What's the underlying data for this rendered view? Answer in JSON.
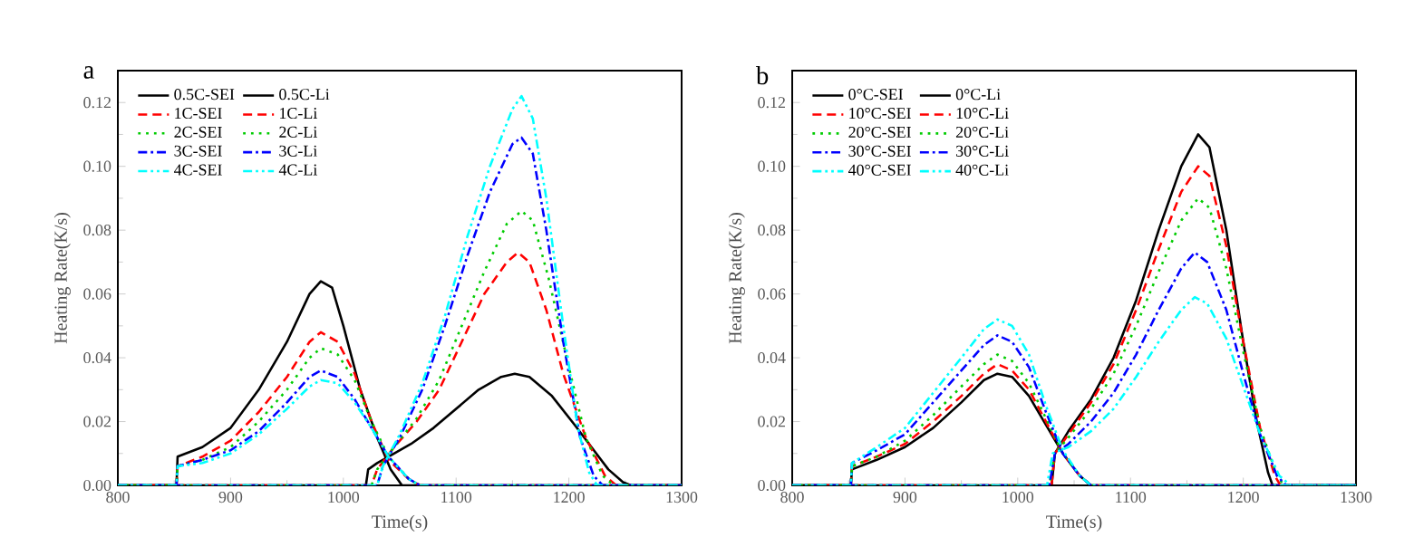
{
  "chart_data": [
    {
      "type": "line",
      "title": "a",
      "xlabel": "Time(s)",
      "ylabel": "Heating Rate(K/s)",
      "xlim": [
        800,
        1300
      ],
      "ylim": [
        0,
        0.13
      ],
      "xticks": [
        800,
        900,
        1000,
        1100,
        1200,
        1300
      ],
      "yticks": [
        {
          "value": 0,
          "label": "0.00"
        },
        {
          "value": 0.02,
          "label": "0.02"
        },
        {
          "value": 0.04,
          "label": "0.04"
        },
        {
          "value": 0.06,
          "label": "0.06"
        },
        {
          "value": 0.08,
          "label": "0.08"
        },
        {
          "value": 0.1,
          "label": "0.10"
        },
        {
          "value": 0.12,
          "label": "0.12"
        }
      ],
      "legend": "top left",
      "series": [
        {
          "name": "0.5C-SEI",
          "color": "#000000",
          "line_style": "solid",
          "x": [
            800,
            852,
            853,
            875,
            900,
            925,
            950,
            970,
            980,
            990,
            1000,
            1015,
            1030,
            1042,
            1052,
            1300
          ],
          "values": [
            0,
            0,
            0.009,
            0.012,
            0.018,
            0.03,
            0.045,
            0.06,
            0.064,
            0.062,
            0.05,
            0.03,
            0.015,
            0.005,
            0,
            0
          ]
        },
        {
          "name": "0.5C-Li",
          "color": "#000000",
          "line_style": "solid",
          "x": [
            800,
            1020,
            1022,
            1030,
            1040,
            1060,
            1080,
            1100,
            1120,
            1140,
            1152,
            1165,
            1185,
            1205,
            1220,
            1235,
            1248,
            1255,
            1300
          ],
          "values": [
            0,
            0,
            0.005,
            0.007,
            0.009,
            0.013,
            0.018,
            0.024,
            0.03,
            0.034,
            0.035,
            0.034,
            0.028,
            0.019,
            0.012,
            0.005,
            0.001,
            0,
            0
          ]
        },
        {
          "name": "1C-SEI",
          "color": "#ff0000",
          "line_style": "dashed",
          "x": [
            800,
            852,
            853,
            875,
            900,
            925,
            950,
            970,
            980,
            995,
            1010,
            1025,
            1040,
            1058,
            1068,
            1300
          ],
          "values": [
            0,
            0,
            0.006,
            0.009,
            0.014,
            0.023,
            0.034,
            0.045,
            0.048,
            0.045,
            0.035,
            0.02,
            0.008,
            0.002,
            0,
            0
          ]
        },
        {
          "name": "1C-Li",
          "color": "#ff0000",
          "line_style": "dashed",
          "x": [
            800,
            1025,
            1030,
            1045,
            1065,
            1085,
            1105,
            1125,
            1145,
            1155,
            1165,
            1180,
            1195,
            1215,
            1232,
            1242,
            1300
          ],
          "values": [
            0,
            0,
            0.005,
            0.012,
            0.02,
            0.03,
            0.045,
            0.06,
            0.07,
            0.073,
            0.07,
            0.055,
            0.035,
            0.015,
            0.003,
            0,
            0
          ]
        },
        {
          "name": "2C-SEI",
          "color": "#00cc00",
          "line_style": "dotted",
          "x": [
            800,
            852,
            853,
            875,
            900,
            925,
            950,
            970,
            980,
            995,
            1010,
            1025,
            1040,
            1058,
            1068,
            1300
          ],
          "values": [
            0,
            0,
            0.006,
            0.008,
            0.012,
            0.02,
            0.03,
            0.04,
            0.043,
            0.041,
            0.033,
            0.02,
            0.009,
            0.002,
            0,
            0
          ]
        },
        {
          "name": "2C-Li",
          "color": "#00cc00",
          "line_style": "dotted",
          "x": [
            800,
            1025,
            1030,
            1045,
            1065,
            1085,
            1105,
            1125,
            1145,
            1158,
            1168,
            1182,
            1198,
            1215,
            1230,
            1240,
            1300
          ],
          "values": [
            0,
            0,
            0.005,
            0.012,
            0.021,
            0.033,
            0.05,
            0.067,
            0.082,
            0.086,
            0.083,
            0.065,
            0.04,
            0.015,
            0.003,
            0,
            0
          ]
        },
        {
          "name": "3C-SEI",
          "color": "#0000ff",
          "line_style": "dashdot",
          "x": [
            800,
            852,
            853,
            875,
            900,
            925,
            950,
            970,
            980,
            995,
            1010,
            1025,
            1040,
            1058,
            1068,
            1300
          ],
          "values": [
            0,
            0,
            0.006,
            0.008,
            0.011,
            0.017,
            0.026,
            0.034,
            0.036,
            0.034,
            0.027,
            0.018,
            0.009,
            0.002,
            0,
            0
          ]
        },
        {
          "name": "3C-Li",
          "color": "#0000ff",
          "line_style": "dashdot",
          "x": [
            800,
            1030,
            1035,
            1050,
            1070,
            1090,
            1110,
            1130,
            1150,
            1158,
            1168,
            1180,
            1195,
            1210,
            1222,
            1230,
            1300
          ],
          "values": [
            0,
            0,
            0.006,
            0.015,
            0.03,
            0.05,
            0.072,
            0.092,
            0.107,
            0.109,
            0.104,
            0.08,
            0.045,
            0.015,
            0.003,
            0,
            0
          ]
        },
        {
          "name": "4C-SEI",
          "color": "#00ffff",
          "line_style": "dashdotdot",
          "x": [
            800,
            852,
            853,
            875,
            900,
            925,
            950,
            970,
            980,
            995,
            1010,
            1025,
            1040,
            1058,
            1068,
            1300
          ],
          "values": [
            0,
            0,
            0.006,
            0.007,
            0.01,
            0.016,
            0.024,
            0.031,
            0.033,
            0.032,
            0.026,
            0.018,
            0.009,
            0.002,
            0,
            0
          ]
        },
        {
          "name": "4C-Li",
          "color": "#00ffff",
          "line_style": "dashdotdot",
          "x": [
            800,
            1030,
            1035,
            1050,
            1070,
            1090,
            1110,
            1130,
            1150,
            1158,
            1168,
            1180,
            1195,
            1208,
            1218,
            1225,
            1300
          ],
          "values": [
            0,
            0,
            0.006,
            0.016,
            0.032,
            0.053,
            0.078,
            0.1,
            0.118,
            0.122,
            0.115,
            0.09,
            0.05,
            0.018,
            0.004,
            0,
            0
          ]
        }
      ]
    },
    {
      "type": "line",
      "title": "b",
      "xlabel": "Time(s)",
      "ylabel": "Heating Rate(K/s)",
      "xlim": [
        800,
        1300
      ],
      "ylim": [
        0,
        0.13
      ],
      "xticks": [
        800,
        900,
        1000,
        1100,
        1200,
        1300
      ],
      "yticks": [
        {
          "value": 0,
          "label": "0.00"
        },
        {
          "value": 0.02,
          "label": "0.02"
        },
        {
          "value": 0.04,
          "label": "0.04"
        },
        {
          "value": 0.06,
          "label": "0.06"
        },
        {
          "value": 0.08,
          "label": "0.08"
        },
        {
          "value": 0.1,
          "label": "0.10"
        },
        {
          "value": 0.12,
          "label": "0.12"
        }
      ],
      "legend": "top left",
      "series": [
        {
          "name": "0°C-SEI",
          "color": "#000000",
          "line_style": "solid",
          "x": [
            800,
            852,
            853,
            875,
            900,
            925,
            950,
            970,
            982,
            995,
            1010,
            1025,
            1040,
            1055,
            1065,
            1300
          ],
          "values": [
            0,
            0,
            0.005,
            0.008,
            0.012,
            0.018,
            0.026,
            0.033,
            0.035,
            0.034,
            0.028,
            0.019,
            0.01,
            0.003,
            0,
            0
          ]
        },
        {
          "name": "0°C-Li",
          "color": "#000000",
          "line_style": "solid",
          "x": [
            800,
            1030,
            1033,
            1045,
            1065,
            1085,
            1105,
            1125,
            1145,
            1160,
            1170,
            1185,
            1200,
            1212,
            1222,
            1226,
            1300
          ],
          "values": [
            0,
            0,
            0.01,
            0.017,
            0.027,
            0.04,
            0.058,
            0.08,
            0.1,
            0.11,
            0.106,
            0.08,
            0.045,
            0.02,
            0.004,
            0,
            0
          ]
        },
        {
          "name": "10°C-SEI",
          "color": "#ff0000",
          "line_style": "dashed",
          "x": [
            800,
            852,
            853,
            875,
            900,
            925,
            950,
            970,
            982,
            995,
            1010,
            1025,
            1040,
            1055,
            1065,
            1300
          ],
          "values": [
            0,
            0,
            0.006,
            0.009,
            0.013,
            0.02,
            0.028,
            0.035,
            0.038,
            0.036,
            0.03,
            0.02,
            0.01,
            0.003,
            0,
            0
          ]
        },
        {
          "name": "10°C-Li",
          "color": "#ff0000",
          "line_style": "dashed",
          "x": [
            800,
            1030,
            1033,
            1045,
            1065,
            1085,
            1105,
            1125,
            1145,
            1160,
            1170,
            1185,
            1200,
            1215,
            1228,
            1233,
            1300
          ],
          "values": [
            0,
            0,
            0.01,
            0.016,
            0.026,
            0.038,
            0.055,
            0.074,
            0.092,
            0.1,
            0.097,
            0.075,
            0.045,
            0.018,
            0.003,
            0,
            0
          ]
        },
        {
          "name": "20°C-SEI",
          "color": "#00cc00",
          "line_style": "dotted",
          "x": [
            800,
            852,
            853,
            875,
            900,
            925,
            950,
            970,
            982,
            995,
            1010,
            1025,
            1040,
            1055,
            1065,
            1300
          ],
          "values": [
            0,
            0,
            0.006,
            0.009,
            0.014,
            0.022,
            0.031,
            0.038,
            0.041,
            0.039,
            0.032,
            0.021,
            0.01,
            0.003,
            0,
            0
          ]
        },
        {
          "name": "20°C-Li",
          "color": "#00cc00",
          "line_style": "dotted",
          "x": [
            800,
            1028,
            1033,
            1045,
            1065,
            1085,
            1105,
            1125,
            1145,
            1160,
            1170,
            1185,
            1200,
            1215,
            1230,
            1236,
            1300
          ],
          "values": [
            0,
            0,
            0.01,
            0.015,
            0.024,
            0.035,
            0.05,
            0.067,
            0.083,
            0.09,
            0.087,
            0.068,
            0.042,
            0.018,
            0.003,
            0,
            0
          ]
        },
        {
          "name": "30°C-SEI",
          "color": "#0000ff",
          "line_style": "dashdot",
          "x": [
            800,
            852,
            853,
            875,
            900,
            925,
            950,
            970,
            982,
            995,
            1010,
            1025,
            1040,
            1055,
            1065,
            1300
          ],
          "values": [
            0,
            0,
            0.007,
            0.011,
            0.016,
            0.026,
            0.036,
            0.044,
            0.047,
            0.045,
            0.037,
            0.023,
            0.01,
            0.003,
            0,
            0
          ]
        },
        {
          "name": "30°C-Li",
          "color": "#0000ff",
          "line_style": "dashdot",
          "x": [
            800,
            1028,
            1033,
            1045,
            1065,
            1085,
            1105,
            1125,
            1145,
            1157,
            1168,
            1185,
            1200,
            1215,
            1230,
            1238,
            1300
          ],
          "values": [
            0,
            0,
            0.01,
            0.013,
            0.02,
            0.029,
            0.041,
            0.055,
            0.068,
            0.073,
            0.07,
            0.055,
            0.035,
            0.016,
            0.003,
            0,
            0
          ]
        },
        {
          "name": "40°C-SEI",
          "color": "#00ffff",
          "line_style": "dashdotdot",
          "x": [
            800,
            852,
            853,
            875,
            900,
            925,
            950,
            970,
            982,
            995,
            1010,
            1025,
            1040,
            1055,
            1065,
            1300
          ],
          "values": [
            0,
            0,
            0.007,
            0.012,
            0.018,
            0.029,
            0.04,
            0.049,
            0.052,
            0.05,
            0.041,
            0.025,
            0.011,
            0.003,
            0,
            0
          ]
        },
        {
          "name": "40°C-Li",
          "color": "#00ffff",
          "line_style": "dashdotdot",
          "x": [
            800,
            1026,
            1031,
            1045,
            1065,
            1085,
            1105,
            1125,
            1145,
            1157,
            1168,
            1185,
            1200,
            1215,
            1232,
            1242,
            1300
          ],
          "values": [
            0,
            0,
            0.01,
            0.012,
            0.017,
            0.024,
            0.034,
            0.045,
            0.055,
            0.059,
            0.057,
            0.046,
            0.031,
            0.016,
            0.003,
            0,
            0
          ]
        }
      ]
    }
  ]
}
